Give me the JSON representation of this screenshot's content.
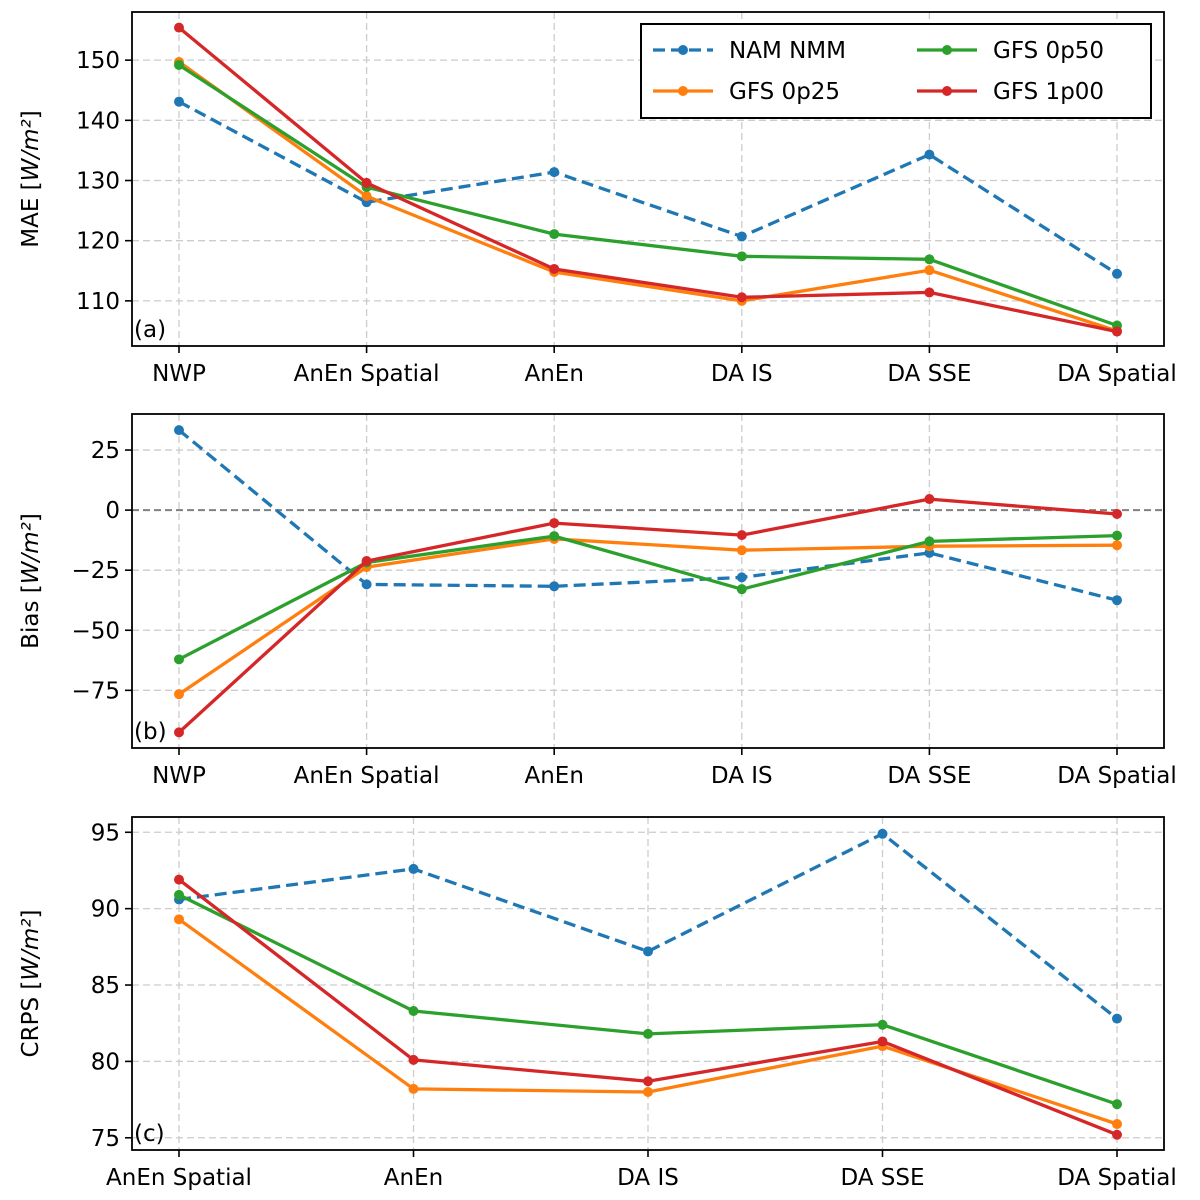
{
  "legend": {
    "placement": "top-right",
    "entries": [
      {
        "label": "NAM NMM",
        "color": "#1f77b4",
        "dashed": true
      },
      {
        "label": "GFS 0p25",
        "color": "#ff7f0e",
        "dashed": false
      },
      {
        "label": "GFS 0p50",
        "color": "#2ca02c",
        "dashed": false
      },
      {
        "label": "GFS 1p00",
        "color": "#d62728",
        "dashed": false
      }
    ]
  },
  "chart_data": [
    {
      "type": "line",
      "panel_label": "(a)",
      "ylabel": "MAE [W/m²]",
      "categories": [
        "NWP",
        "AnEn Spatial",
        "AnEn",
        "DA IS",
        "DA SSE",
        "DA Spatial"
      ],
      "ylim": [
        102.5,
        158
      ],
      "yticks": [
        110,
        120,
        130,
        140,
        150
      ],
      "grid": true,
      "series": [
        {
          "name": "NAM NMM",
          "color": "#1f77b4",
          "dashed": true,
          "values": [
            143.1,
            126.4,
            131.4,
            120.7,
            134.3,
            114.5
          ]
        },
        {
          "name": "GFS 0p25",
          "color": "#ff7f0e",
          "dashed": false,
          "values": [
            149.7,
            127.4,
            114.8,
            110.0,
            115.1,
            105.0
          ]
        },
        {
          "name": "GFS 0p50",
          "color": "#2ca02c",
          "dashed": false,
          "values": [
            149.2,
            128.9,
            121.1,
            117.4,
            116.9,
            105.9
          ]
        },
        {
          "name": "GFS 1p00",
          "color": "#d62728",
          "dashed": false,
          "values": [
            155.4,
            129.6,
            115.3,
            110.6,
            111.4,
            104.9
          ]
        }
      ]
    },
    {
      "type": "line",
      "panel_label": "(b)",
      "ylabel": "Bias [W/m²]",
      "categories": [
        "NWP",
        "AnEn Spatial",
        "AnEn",
        "DA IS",
        "DA SSE",
        "DA Spatial"
      ],
      "ylim": [
        -99,
        40
      ],
      "yticks": [
        -75,
        -50,
        -25,
        0,
        25
      ],
      "zero_line": true,
      "grid": true,
      "series": [
        {
          "name": "NAM NMM",
          "color": "#1f77b4",
          "dashed": true,
          "values": [
            33.3,
            -30.9,
            -31.7,
            -28.0,
            -17.8,
            -37.5
          ]
        },
        {
          "name": "GFS 0p25",
          "color": "#ff7f0e",
          "dashed": false,
          "values": [
            -76.6,
            -23.7,
            -12.0,
            -16.7,
            -15.0,
            -14.6
          ]
        },
        {
          "name": "GFS 0p50",
          "color": "#2ca02c",
          "dashed": false,
          "values": [
            -62.1,
            -21.8,
            -10.8,
            -32.9,
            -13.0,
            -10.6
          ]
        },
        {
          "name": "GFS 1p00",
          "color": "#d62728",
          "dashed": false,
          "values": [
            -92.5,
            -21.2,
            -5.4,
            -10.4,
            4.6,
            -1.6
          ]
        }
      ]
    },
    {
      "type": "line",
      "panel_label": "(c)",
      "ylabel": "CRPS [W/m²]",
      "categories": [
        "AnEn Spatial",
        "AnEn",
        "DA IS",
        "DA SSE",
        "DA Spatial"
      ],
      "ylim": [
        74.2,
        96.0
      ],
      "yticks": [
        75,
        80,
        85,
        90,
        95
      ],
      "grid": true,
      "series": [
        {
          "name": "NAM NMM",
          "color": "#1f77b4",
          "dashed": true,
          "values": [
            90.6,
            92.6,
            87.2,
            94.9,
            82.8
          ]
        },
        {
          "name": "GFS 0p25",
          "color": "#ff7f0e",
          "dashed": false,
          "values": [
            89.3,
            78.2,
            78.0,
            81.0,
            75.9
          ]
        },
        {
          "name": "GFS 0p50",
          "color": "#2ca02c",
          "dashed": false,
          "values": [
            90.9,
            83.3,
            81.8,
            82.4,
            77.2
          ]
        },
        {
          "name": "GFS 1p00",
          "color": "#d62728",
          "dashed": false,
          "values": [
            91.9,
            80.1,
            78.7,
            81.3,
            75.2
          ]
        }
      ]
    }
  ]
}
